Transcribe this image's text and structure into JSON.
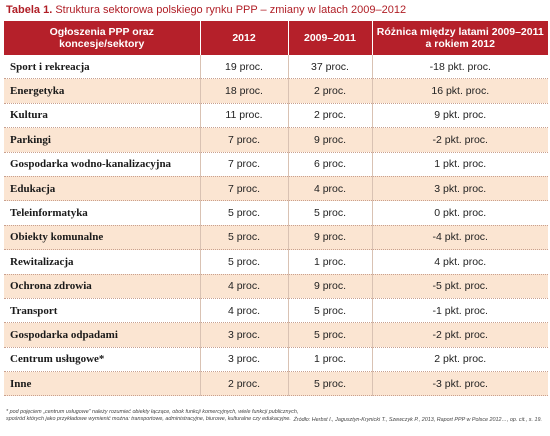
{
  "caption": {
    "label": "Tabela 1.",
    "title": "Struktura sektorowa polskiego rynku PPP – zmiany w latach 2009–2012"
  },
  "table": {
    "headers": [
      "Ogłoszenia PPP oraz koncesje/sektory",
      "2012",
      "2009–2011",
      "Różnica między latami 2009–2011 a rokiem 2012"
    ],
    "rows": [
      [
        "Sport i rekreacja",
        "19 proc.",
        "37 proc.",
        "-18 pkt. proc."
      ],
      [
        "Energetyka",
        "18 proc.",
        "2 proc.",
        "16 pkt. proc."
      ],
      [
        "Kultura",
        "11 proc.",
        "2 proc.",
        "9 pkt. proc."
      ],
      [
        "Parkingi",
        "7 proc.",
        "9 proc.",
        "-2 pkt. proc."
      ],
      [
        "Gospodarka wodno-kanalizacyjna",
        "7 proc.",
        "6 proc.",
        "1 pkt. proc."
      ],
      [
        "Edukacja",
        "7 proc.",
        "4 proc.",
        "3 pkt. proc."
      ],
      [
        "Teleinformatyka",
        "5 proc.",
        "5 proc.",
        "0 pkt. proc."
      ],
      [
        "Obiekty komunalne",
        "5 proc.",
        "9 proc.",
        "-4 pkt. proc."
      ],
      [
        "Rewitalizacja",
        "5 proc.",
        "1 proc.",
        "4 pkt. proc."
      ],
      [
        "Ochrona zdrowia",
        "4 proc.",
        "9 proc.",
        "-5 pkt. proc."
      ],
      [
        "Transport",
        "4 proc.",
        "5 proc.",
        "-1 pkt. proc."
      ],
      [
        "Gospodarka odpadami",
        "3 proc.",
        "5 proc.",
        "-2 pkt. proc."
      ],
      [
        "Centrum usługowe*",
        "3 proc.",
        "1 proc.",
        "2 pkt. proc."
      ],
      [
        "Inne",
        "2 proc.",
        "5 proc.",
        "-3 pkt. proc."
      ]
    ]
  },
  "footnote": "* pod pojęciem „centrum usługowe” należy rozumieć obiekty łączące, obok funkcji komercyjnych, wiele funkcji publicznych, spośród których jako przykładowe wymienić można: transportowe, administracyjne, biurowe, kulturalne czy edukacyjne.",
  "source": "Źródło: Herbst I., Jagusztyn-Krynicki T., Szewczyk P., 2013, Raport PPP w Polsce 2012…, op. cit., s. 19."
}
